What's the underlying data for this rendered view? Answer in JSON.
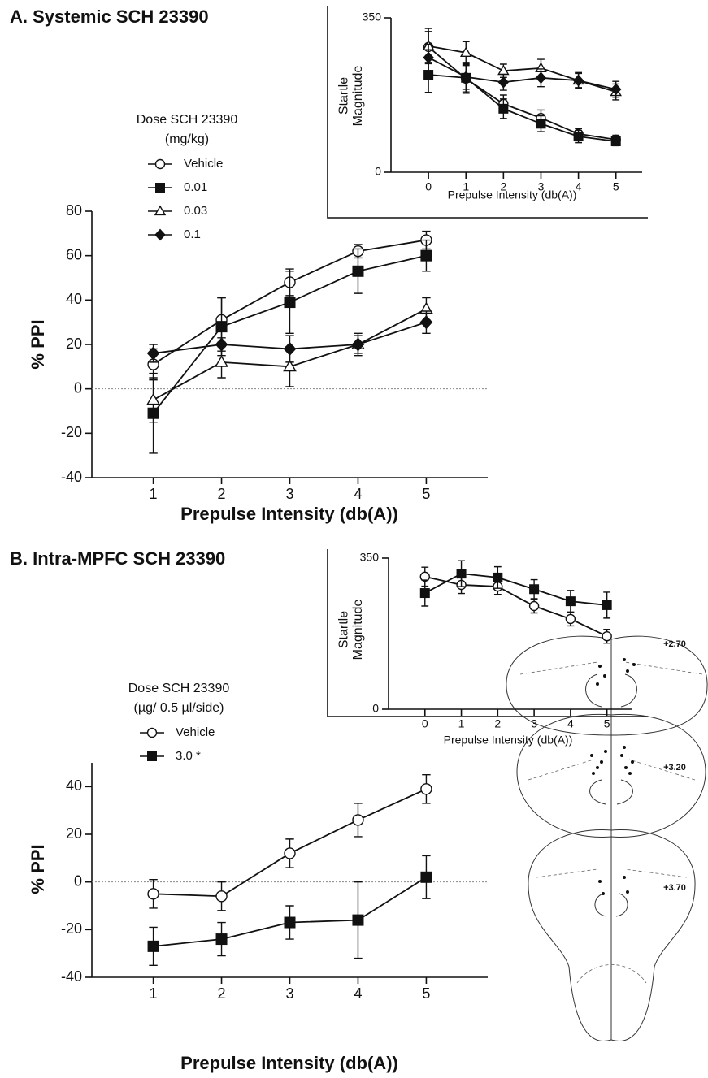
{
  "chart_data": [
    {
      "type": "line",
      "title": "A.  Systemic SCH 23390",
      "x": [
        1,
        2,
        3,
        4,
        5
      ],
      "xlim": [
        0.1,
        5.9
      ],
      "xticks": [
        1,
        2,
        3,
        4,
        5
      ],
      "ylim": [
        -40,
        80
      ],
      "yticks": [
        -40,
        -20,
        0,
        20,
        40,
        60,
        80
      ],
      "reference_line": 0,
      "xlabel": "Prepulse Intensity (db(A))",
      "ylabel": [
        "% PPI"
      ],
      "legend_title": [
        "Dose SCH 23390",
        "(mg/kg)"
      ],
      "series": [
        {
          "name": "Vehicle",
          "marker": "circle-open",
          "color": "#111111",
          "values": [
            11,
            31,
            48,
            62,
            67
          ],
          "errors": [
            7,
            10,
            6,
            3,
            4
          ]
        },
        {
          "name": "0.01",
          "marker": "square",
          "color": "#111111",
          "values": [
            -11,
            28,
            39,
            53,
            60
          ],
          "errors": [
            18,
            13,
            14,
            10,
            7
          ]
        },
        {
          "name": "0.03",
          "marker": "triangle-open",
          "color": "#111111",
          "values": [
            -5,
            12,
            10,
            20,
            36
          ],
          "errors": [
            10,
            7,
            9,
            4,
            5
          ]
        },
        {
          "name": "0.1",
          "marker": "diamond",
          "color": "#111111",
          "values": [
            16,
            20,
            18,
            20,
            30
          ],
          "errors": [
            4,
            3,
            6,
            5,
            5
          ]
        }
      ]
    },
    {
      "type": "line",
      "x": [
        0,
        1,
        2,
        3,
        4,
        5
      ],
      "xlim": [
        -1,
        5.7
      ],
      "xticks": [
        0,
        1,
        2,
        3,
        4,
        5
      ],
      "ylim": [
        0,
        350
      ],
      "yticks": [
        0,
        350
      ],
      "xlabel": "Prepulse Intensity (db(A))",
      "ylabel": [
        "Startle",
        "Magnitude"
      ],
      "series": [
        {
          "marker": "circle-open",
          "color": "#111111",
          "values": [
            284,
            212,
            155,
            123,
            87,
            74
          ],
          "errors": [
            35,
            30,
            20,
            18,
            12,
            10
          ]
        },
        {
          "marker": "square",
          "color": "#111111",
          "values": [
            221,
            214,
            144,
            110,
            81,
            70
          ],
          "errors": [
            40,
            35,
            22,
            18,
            14,
            10
          ]
        },
        {
          "marker": "triangle-open",
          "color": "#111111",
          "values": [
            286,
            271,
            230,
            236,
            208,
            182
          ],
          "errors": [
            40,
            25,
            15,
            20,
            18,
            18
          ]
        },
        {
          "marker": "diamond",
          "color": "#111111",
          "values": [
            260,
            216,
            204,
            214,
            208,
            188
          ],
          "errors": [
            30,
            28,
            18,
            20,
            16,
            18
          ]
        }
      ]
    },
    {
      "type": "line",
      "title": "B.  Intra-MPFC SCH 23390",
      "x": [
        1,
        2,
        3,
        4,
        5
      ],
      "xlim": [
        0.1,
        5.9
      ],
      "xticks": [
        1,
        2,
        3,
        4,
        5
      ],
      "ylim": [
        -40,
        50
      ],
      "yticks": [
        -40,
        -20,
        0,
        20,
        40
      ],
      "reference_line": 0,
      "xlabel": "Prepulse Intensity (db(A))",
      "ylabel": [
        "% PPI"
      ],
      "legend_title": [
        "Dose SCH 23390",
        "(µg/ 0.5 µl/side)"
      ],
      "series": [
        {
          "name": "Vehicle",
          "marker": "circle-open",
          "color": "#111111",
          "values": [
            -5,
            -6,
            12,
            26,
            39
          ],
          "errors": [
            6,
            6,
            6,
            7,
            6
          ]
        },
        {
          "name": "3.0 *",
          "marker": "square",
          "color": "#111111",
          "values": [
            -27,
            -24,
            -17,
            -16,
            2
          ],
          "errors": [
            8,
            7,
            7,
            16,
            9
          ]
        }
      ]
    },
    {
      "type": "line",
      "x": [
        0,
        1,
        2,
        3,
        4,
        5
      ],
      "xlim": [
        -1,
        5.7
      ],
      "xticks": [
        0,
        1,
        2,
        3,
        4,
        5
      ],
      "ylim": [
        0,
        350
      ],
      "yticks": [
        0,
        350
      ],
      "xlabel": "Prepulse Intensity (db(A))",
      "ylabel": [
        "Startle",
        "Magnitude"
      ],
      "series": [
        {
          "marker": "circle-open",
          "color": "#111111",
          "values": [
            307,
            288,
            284,
            239,
            209,
            169
          ],
          "errors": [
            22,
            20,
            18,
            16,
            16,
            16
          ]
        },
        {
          "marker": "square",
          "color": "#111111",
          "values": [
            269,
            314,
            305,
            278,
            250,
            241
          ],
          "errors": [
            30,
            30,
            25,
            22,
            25,
            30
          ]
        }
      ]
    }
  ],
  "brain_sections": {
    "labels": [
      "+2.70",
      "+3.20",
      "+3.70"
    ]
  }
}
